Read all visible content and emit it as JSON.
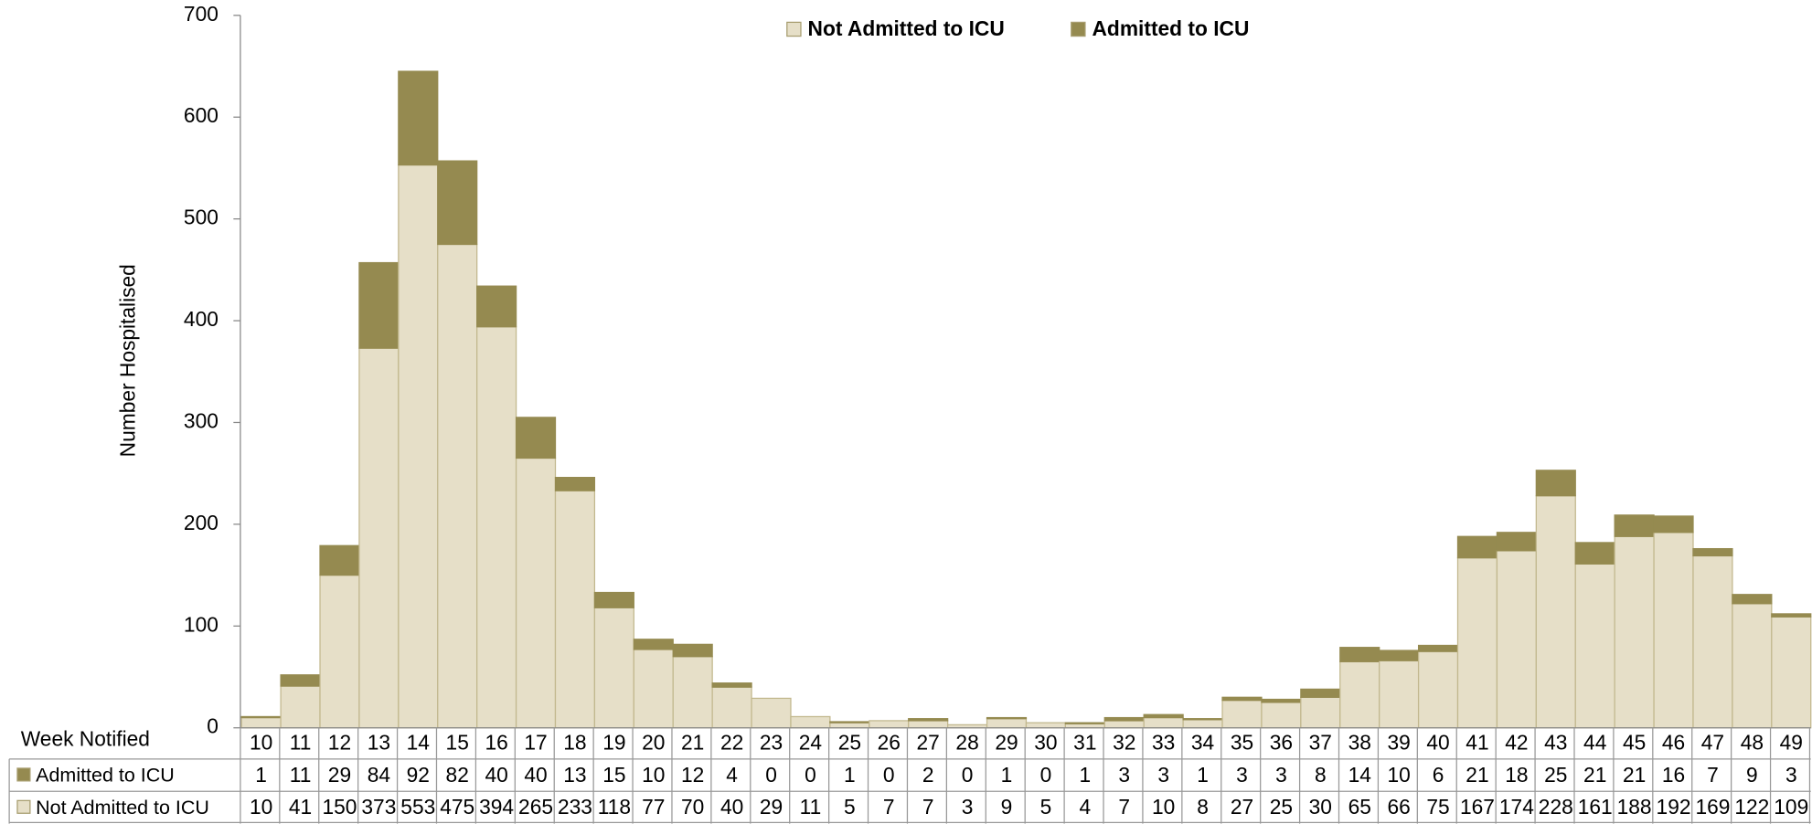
{
  "chart_data": {
    "type": "stacked_bar",
    "ylabel": "Number Hospitalised",
    "xlabel": "Week Notified",
    "categories": [
      "10",
      "11",
      "12",
      "13",
      "14",
      "15",
      "16",
      "17",
      "18",
      "19",
      "20",
      "21",
      "22",
      "23",
      "24",
      "25",
      "26",
      "27",
      "28",
      "29",
      "30",
      "31",
      "32",
      "33",
      "34",
      "35",
      "36",
      "37",
      "38",
      "39",
      "40",
      "41",
      "42",
      "43",
      "44",
      "45",
      "46",
      "47",
      "48",
      "49"
    ],
    "series": [
      {
        "name": "Not Admitted to ICU",
        "color": "#e6dfc8",
        "values": [
          10,
          41,
          150,
          373,
          553,
          475,
          394,
          265,
          233,
          118,
          77,
          70,
          40,
          29,
          11,
          5,
          7,
          7,
          3,
          9,
          5,
          4,
          7,
          10,
          8,
          27,
          25,
          30,
          65,
          66,
          75,
          167,
          174,
          228,
          161,
          188,
          192,
          169,
          122,
          109
        ]
      },
      {
        "name": "Admitted to ICU",
        "color": "#958a50",
        "values": [
          1,
          11,
          29,
          84,
          92,
          82,
          40,
          40,
          13,
          15,
          10,
          12,
          4,
          0,
          0,
          1,
          0,
          2,
          0,
          1,
          0,
          1,
          3,
          3,
          1,
          3,
          3,
          8,
          14,
          10,
          6,
          21,
          18,
          25,
          21,
          21,
          16,
          7,
          9,
          3
        ]
      }
    ],
    "ylim": [
      0,
      700
    ],
    "yticks": [
      0,
      100,
      200,
      300,
      400,
      500,
      600,
      700
    ],
    "legend": "top"
  }
}
